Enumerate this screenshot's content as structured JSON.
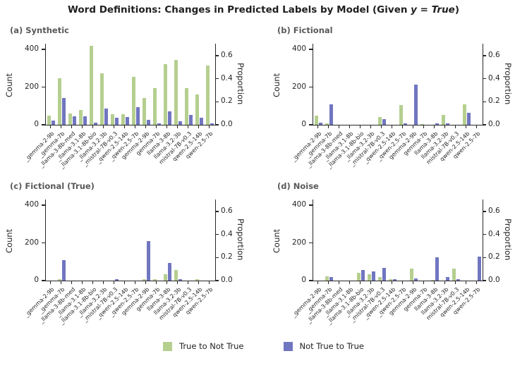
{
  "title": {
    "prefix": "Word Definitions: Changes in Predicted Labels by Model (Given ",
    "math": "y = True",
    "suffix": ")"
  },
  "colors": {
    "green": "#b5cf8f",
    "purple": "#7176c0",
    "axis": "#262626",
    "subtitle_gray": "#595959"
  },
  "legend": [
    {
      "label": "True to Not True",
      "color_key": "green"
    },
    {
      "label": "Not True to True",
      "color_key": "purple"
    }
  ],
  "axes": {
    "count_label": "Count",
    "count_ticks": [
      0,
      200,
      400
    ],
    "count_max": 430,
    "proportion_label": "Proportion",
    "proportion_ticks": [
      "0.0",
      "0.2",
      "0.4",
      "0.6"
    ],
    "proportion_tick_counts": [
      0,
      122,
      244,
      367
    ]
  },
  "chart_data": [
    {
      "type": "bar",
      "id": "a",
      "title": "(a) Synthetic",
      "categories": [
        "_gemma-2-9b",
        "_gemma-7b",
        "_llama-3-8b-med",
        "_llama-3.1-8b",
        "_llama-3.1-8b-bio",
        "_llama-3.2-3b",
        "_mistral-7B-v0.3",
        "_qwen-2.5-14b",
        "_qwen-2.5-7b",
        "gemma-2-9b",
        "gemma-7b",
        "llama-3-8b",
        "llama-3.2-3b",
        "mistral-7B-v0.3",
        "qwen-2.5-14b",
        "qwen-2.5-7b"
      ],
      "series": [
        {
          "name": "True to Not True",
          "values": [
            50,
            245,
            60,
            77,
            417,
            272,
            55,
            55,
            253,
            144,
            196,
            321,
            345,
            195,
            160,
            315
          ]
        },
        {
          "name": "Not True to True",
          "values": [
            23,
            141,
            45,
            44,
            12,
            85,
            36,
            40,
            95,
            28,
            7,
            71,
            17,
            52,
            38,
            7
          ]
        }
      ],
      "ylabel": "Count",
      "y2label": "Proportion",
      "ylim": [
        0,
        430
      ]
    },
    {
      "type": "bar",
      "id": "b",
      "title": "(b) Fictional",
      "categories": [
        "_gemma-2-9b",
        "_gemma-7b",
        "_llama-3-8b-med",
        "_llama-3.1-8b",
        "_llama-3.1-8b-bio",
        "_llama-3.2-3b",
        "_mistral-7B-v0.3",
        "_qwen-2.5-14b",
        "_qwen-2.5-7b",
        "gemma-2-9b",
        "gemma-7b",
        "llama-3-8b",
        "llama-3.2-3b",
        "mistral-7B-v0.3",
        "qwen-2.5-14b",
        "qwen-2.5-7b"
      ],
      "series": [
        {
          "name": "True to Not True",
          "values": [
            47,
            8,
            0,
            0,
            0,
            0,
            40,
            0,
            105,
            0,
            5,
            0,
            53,
            0,
            109,
            0
          ]
        },
        {
          "name": "Not True to True",
          "values": [
            10,
            110,
            0,
            0,
            0,
            0,
            30,
            0,
            8,
            215,
            0,
            8,
            7,
            0,
            65,
            0
          ]
        }
      ],
      "ylabel": "Count",
      "y2label": "Proportion",
      "ylim": [
        0,
        430
      ]
    },
    {
      "type": "bar",
      "id": "c",
      "title": "(c) Fictional (True)",
      "categories": [
        "_gemma-2-9b",
        "_gemma-7b",
        "_llama-3-8b-med",
        "_llama-3.1-8b",
        "_llama-3.1-8b-bio",
        "_llama-3.2-3b",
        "_mistral-7B-v0.3",
        "_qwen-2.5-14b",
        "_qwen-2.5-7b",
        "gemma-2-9b",
        "gemma-7b",
        "llama-3-8b",
        "llama-3.2-3b",
        "mistral-7B-v0.3",
        "qwen-2.5-14b",
        "qwen-2.5-7b"
      ],
      "series": [
        {
          "name": "True to Not True",
          "values": [
            0,
            7,
            0,
            0,
            0,
            0,
            0,
            0,
            0,
            6,
            6,
            33,
            58,
            0,
            6,
            0
          ]
        },
        {
          "name": "Not True to True",
          "values": [
            0,
            110,
            0,
            0,
            0,
            0,
            6,
            0,
            0,
            210,
            0,
            95,
            8,
            0,
            0,
            0
          ]
        }
      ],
      "ylabel": "Count",
      "y2label": "Proportion",
      "ylim": [
        0,
        430
      ]
    },
    {
      "type": "bar",
      "id": "d",
      "title": "(d) Noise",
      "categories": [
        "_gemma-2-9b",
        "_gemma-7b",
        "_llama-3-8b-med",
        "_llama-3.1-8b",
        "_llama-3.1-8b-bio",
        "_llama-3.2-3b",
        "_mistral-7B-v0.3",
        "_qwen-2.5-14b",
        "_qwen-2.5-7b",
        "gemma-2-9b",
        "gemma-7b",
        "llama-3-8b",
        "llama-3.2-3b",
        "mistral-7B-v0.3",
        "qwen-2.5-14b",
        "qwen-2.5-7b"
      ],
      "series": [
        {
          "name": "True to Not True",
          "values": [
            0,
            23,
            0,
            0,
            43,
            33,
            19,
            9,
            0,
            62,
            0,
            5,
            0,
            65,
            0,
            0
          ]
        },
        {
          "name": "Not True to True",
          "values": [
            0,
            18,
            0,
            0,
            58,
            49,
            67,
            8,
            0,
            13,
            0,
            125,
            20,
            9,
            0,
            128
          ]
        }
      ],
      "ylabel": "Count",
      "y2label": "Proportion",
      "ylim": [
        0,
        430
      ]
    }
  ]
}
